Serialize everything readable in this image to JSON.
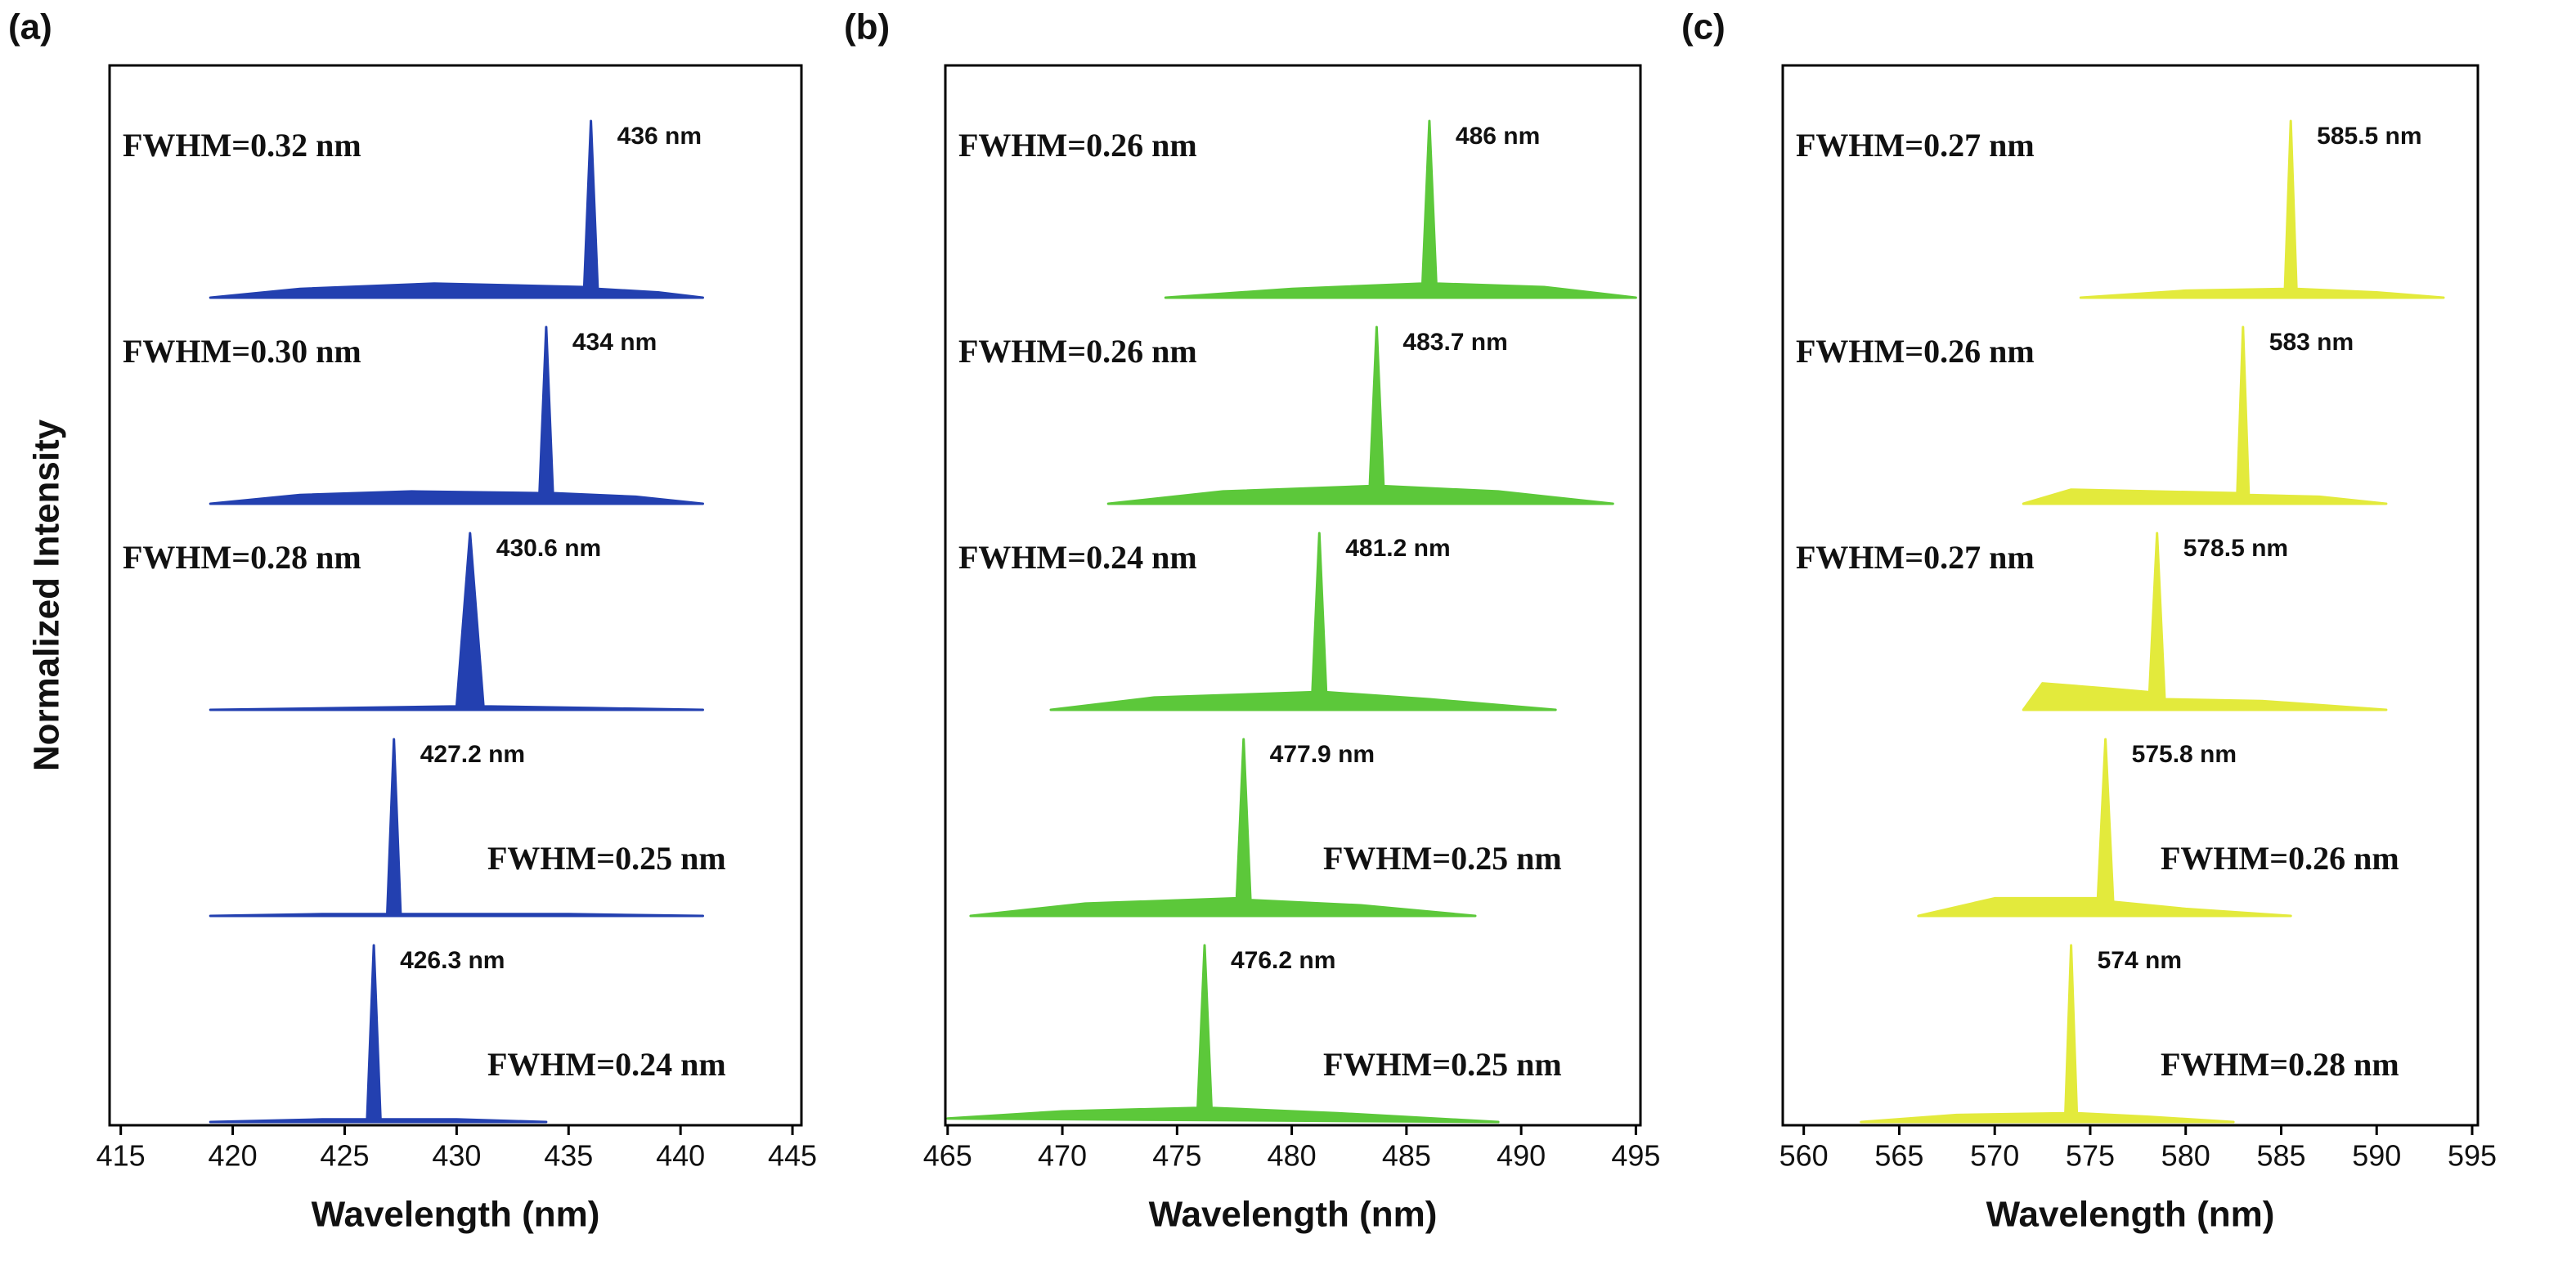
{
  "chart_data": [
    {
      "type": "area",
      "panel_label": "(a)",
      "y_label": "Normalized Intensity",
      "x_label": "Wavelength (nm)",
      "xlim": [
        414.5,
        445.4
      ],
      "xticks": [
        415,
        420,
        425,
        430,
        435,
        440,
        445
      ],
      "series": [
        {
          "color": "#2340b0",
          "peak_label": "426.3 nm",
          "fwhm_label": "FWHM=0.24 nm",
          "x": [
            419,
            424,
            426.0,
            426.3,
            426.6,
            430,
            434
          ],
          "values": [
            0,
            0.015,
            0.015,
            1,
            0.015,
            0.015,
            0
          ]
        },
        {
          "color": "#2340b0",
          "peak_label": "427.2 nm",
          "fwhm_label": "FWHM=0.25 nm",
          "x": [
            419,
            424,
            426.9,
            427.2,
            427.5,
            435,
            441
          ],
          "values": [
            0,
            0.01,
            0.01,
            1,
            0.01,
            0.01,
            0
          ]
        },
        {
          "color": "#2340b0",
          "peak_label": "430.6 nm",
          "fwhm_label": "FWHM=0.28 nm",
          "x": [
            419,
            425,
            430.0,
            430.6,
            431.2,
            436,
            441
          ],
          "values": [
            0,
            0.01,
            0.02,
            1,
            0.02,
            0.01,
            0
          ]
        },
        {
          "color": "#2340b0",
          "peak_label": "434 nm",
          "fwhm_label": "FWHM=0.30 nm",
          "x": [
            419,
            423,
            428,
            433.7,
            434,
            434.3,
            438,
            441
          ],
          "values": [
            0,
            0.05,
            0.07,
            0.06,
            1,
            0.06,
            0.04,
            0
          ]
        },
        {
          "color": "#2340b0",
          "peak_label": "436 nm",
          "fwhm_label": "FWHM=0.32 nm",
          "x": [
            419,
            423,
            429,
            435.7,
            436,
            436.3,
            439,
            441
          ],
          "values": [
            0,
            0.05,
            0.08,
            0.06,
            1,
            0.05,
            0.03,
            0
          ]
        }
      ]
    },
    {
      "type": "area",
      "panel_label": "(b)",
      "x_label": "Wavelength (nm)",
      "xlim": [
        464.9,
        495.2
      ],
      "xticks": [
        465,
        470,
        475,
        480,
        485,
        490,
        495
      ],
      "series": [
        {
          "color": "#5cc83a",
          "peak_label": "476.2 nm",
          "fwhm_label": "FWHM=0.25 nm",
          "x": [
            465,
            470,
            475.9,
            476.2,
            476.5,
            482,
            489
          ],
          "values": [
            0.02,
            0.06,
            0.08,
            1,
            0.08,
            0.05,
            0
          ]
        },
        {
          "color": "#5cc83a",
          "peak_label": "477.9 nm",
          "fwhm_label": "FWHM=0.25 nm",
          "x": [
            466,
            471,
            477.6,
            477.9,
            478.2,
            483,
            488
          ],
          "values": [
            0,
            0.07,
            0.1,
            1,
            0.09,
            0.06,
            0
          ]
        },
        {
          "color": "#5cc83a",
          "peak_label": "481.2 nm",
          "fwhm_label": "FWHM=0.24 nm",
          "x": [
            469.5,
            474,
            480.9,
            481.2,
            481.5,
            486,
            491.5
          ],
          "values": [
            0,
            0.07,
            0.1,
            1,
            0.1,
            0.06,
            0
          ]
        },
        {
          "color": "#5cc83a",
          "peak_label": "483.7 nm",
          "fwhm_label": "FWHM=0.26 nm",
          "x": [
            472,
            477,
            483.4,
            483.7,
            484.0,
            489,
            494
          ],
          "values": [
            0,
            0.07,
            0.1,
            1,
            0.1,
            0.07,
            0
          ]
        },
        {
          "color": "#5cc83a",
          "peak_label": "486 nm",
          "fwhm_label": "FWHM=0.26 nm",
          "x": [
            474.5,
            480,
            485.7,
            486,
            486.3,
            491,
            495
          ],
          "values": [
            0,
            0.05,
            0.08,
            1,
            0.08,
            0.06,
            0
          ]
        }
      ]
    },
    {
      "type": "area",
      "panel_label": "(c)",
      "x_label": "Wavelength (nm)",
      "xlim": [
        558.9,
        595.3
      ],
      "xticks": [
        560,
        565,
        570,
        575,
        580,
        585,
        590,
        595
      ],
      "series": [
        {
          "color": "#e3ea3c",
          "peak_label": "574 nm",
          "fwhm_label": "FWHM=0.28 nm",
          "x": [
            563,
            568,
            573.7,
            574,
            574.3,
            578,
            582.5
          ],
          "values": [
            0,
            0.04,
            0.05,
            1,
            0.05,
            0.03,
            0
          ]
        },
        {
          "color": "#e3ea3c",
          "peak_label": "575.8 nm",
          "fwhm_label": "FWHM=0.26 nm",
          "x": [
            566,
            570,
            575.4,
            575.8,
            576.2,
            580,
            585.5
          ],
          "values": [
            0,
            0.1,
            0.1,
            1,
            0.08,
            0.04,
            0
          ]
        },
        {
          "color": "#e3ea3c",
          "peak_label": "578.5 nm",
          "fwhm_label": "FWHM=0.27 nm",
          "x": [
            571.5,
            572.5,
            576,
            578.1,
            578.5,
            578.9,
            584,
            590.5
          ],
          "values": [
            0,
            0.15,
            0.12,
            0.1,
            1,
            0.06,
            0.05,
            0
          ]
        },
        {
          "color": "#e3ea3c",
          "peak_label": "583 nm",
          "fwhm_label": "FWHM=0.26 nm",
          "x": [
            571.5,
            574,
            582.7,
            583,
            583.3,
            587,
            590.5
          ],
          "values": [
            0,
            0.08,
            0.06,
            1,
            0.05,
            0.04,
            0
          ]
        },
        {
          "color": "#e3ea3c",
          "peak_label": "585.5 nm",
          "fwhm_label": "FWHM=0.27 nm",
          "x": [
            574.5,
            580,
            585.2,
            585.5,
            585.8,
            590,
            593.5
          ],
          "values": [
            0,
            0.04,
            0.05,
            1,
            0.05,
            0.03,
            0
          ]
        }
      ]
    }
  ]
}
